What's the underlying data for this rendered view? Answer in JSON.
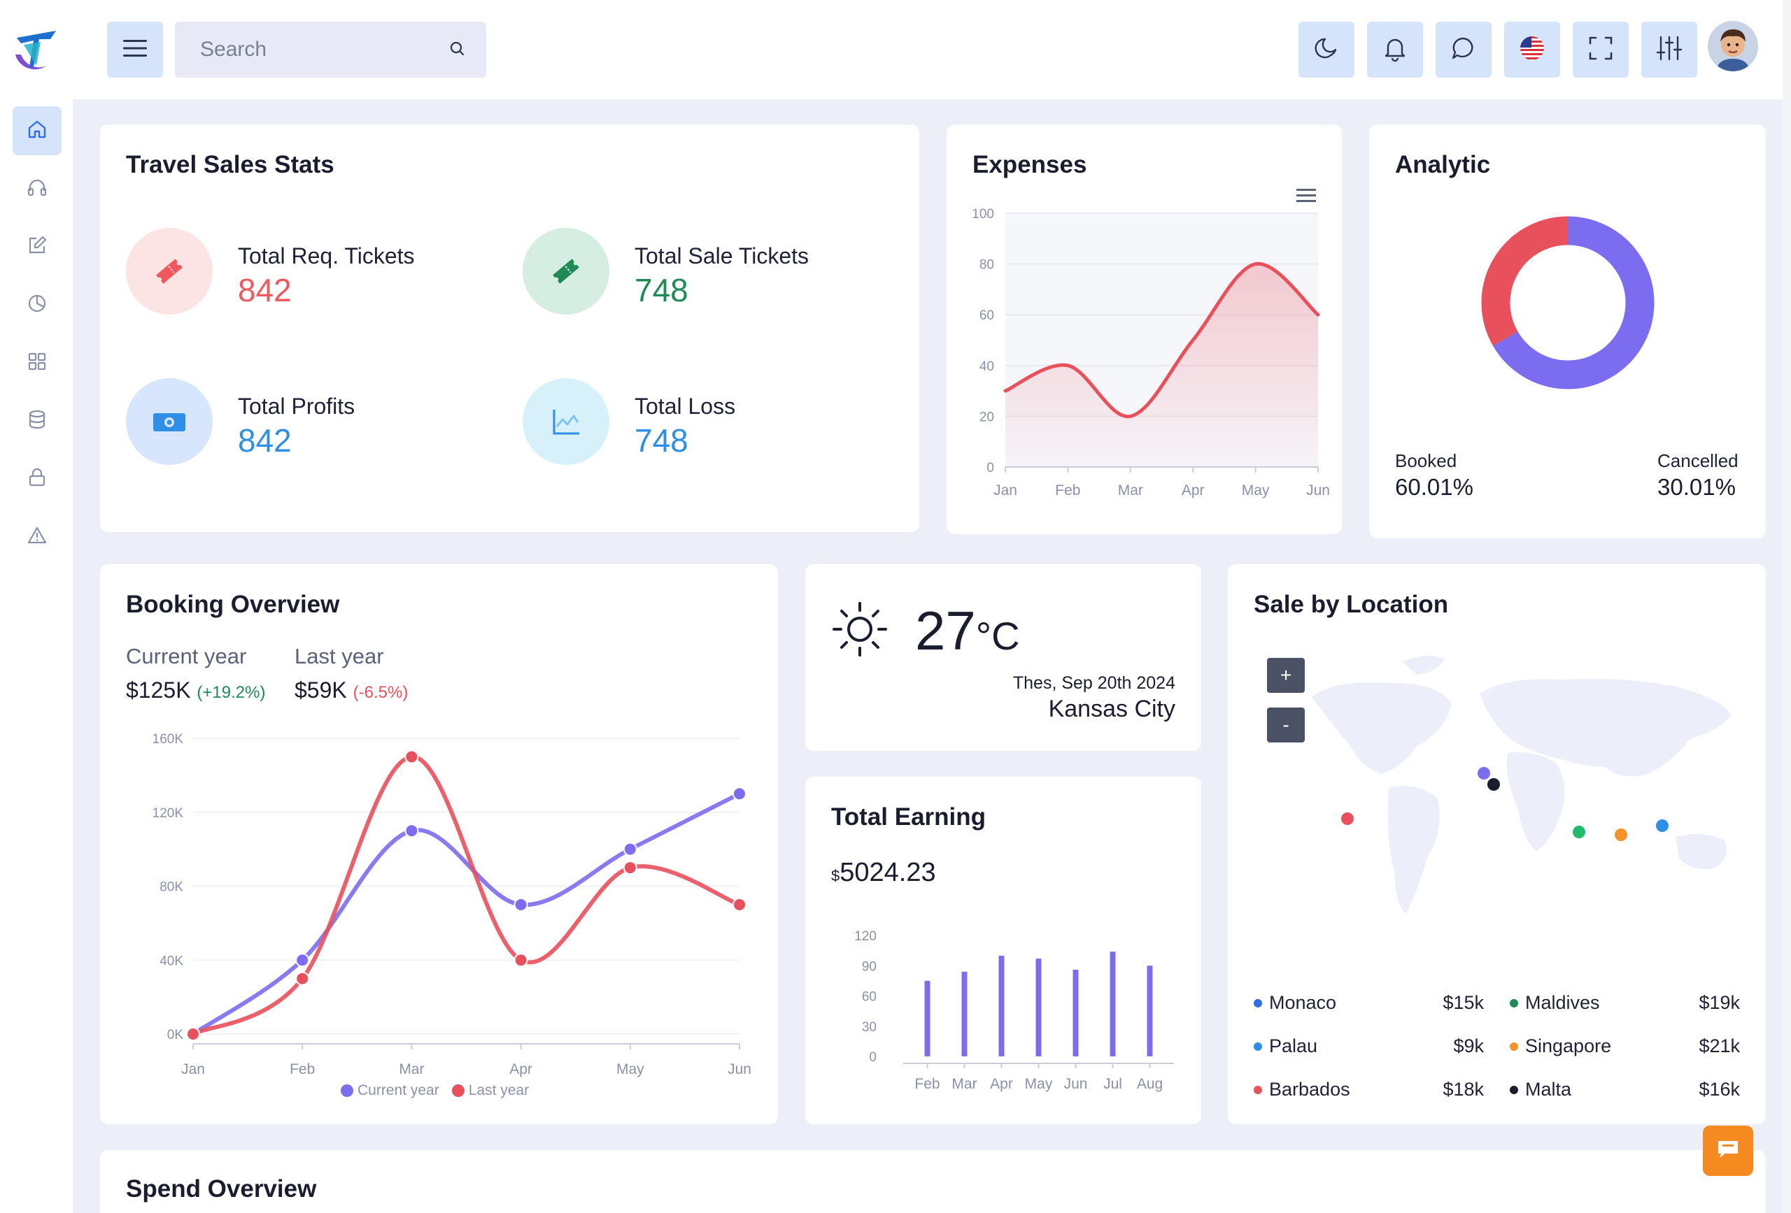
{
  "header": {
    "search_placeholder": "Search",
    "icons": [
      "menu-icon",
      "search-icon",
      "moon-icon",
      "bell-icon",
      "chat-icon",
      "us-flag-icon",
      "fullscreen-icon",
      "sliders-icon"
    ]
  },
  "sidebar": {
    "items": [
      "home-icon",
      "headset-icon",
      "edit-icon",
      "pie-chart-icon",
      "grid-icon",
      "database-icon",
      "lock-icon",
      "warning-icon"
    ]
  },
  "travel_sales": {
    "title": "Travel Sales Stats",
    "stats": [
      {
        "label": "Total Req. Tickets",
        "value": "842",
        "color": "#f0585d"
      },
      {
        "label": "Total Sale Tickets",
        "value": "748",
        "color": "#1f8a55"
      },
      {
        "label": "Total Profits",
        "value": "842",
        "color": "#2f8fe6"
      },
      {
        "label": "Total Loss",
        "value": "748",
        "color": "#2f8fe6"
      }
    ]
  },
  "expenses": {
    "title": "Expenses",
    "chart_data": {
      "type": "area",
      "x": [
        "Jan",
        "Feb",
        "Mar",
        "Apr",
        "May",
        "Jun"
      ],
      "series": [
        {
          "values": [
            30,
            40,
            20,
            50,
            80,
            60
          ]
        }
      ],
      "yticks": [
        "0",
        "20",
        "40",
        "60",
        "80",
        "100"
      ],
      "ylim": [
        0,
        100
      ],
      "color": "#e8505b"
    }
  },
  "analytic": {
    "title": "Analytic",
    "booked_label": "Booked",
    "booked_value": "60.01%",
    "cancelled_label": "Cancelled",
    "cancelled_value": "30.01%",
    "chart_data": {
      "type": "pie",
      "labels": [
        "Booked",
        "Cancelled"
      ],
      "values": [
        60.01,
        30.01
      ],
      "colors": [
        "#7b6cf0",
        "#e8505b"
      ]
    }
  },
  "booking": {
    "title": "Booking Overview",
    "current_label": "Current year",
    "current_value": "$125K",
    "current_change": "(+19.2%)",
    "last_label": "Last year",
    "last_value": "$59K",
    "last_change": "(-6.5%)",
    "legend_current": "Current year",
    "legend_last": "Last year",
    "chart_data": {
      "type": "line",
      "x": [
        "Jan",
        "Feb",
        "Mar",
        "Apr",
        "May",
        "Jun"
      ],
      "yticks": [
        "0K",
        "40K",
        "80K",
        "120K",
        "160K"
      ],
      "ylim": [
        0,
        160
      ],
      "series": [
        {
          "name": "Current year",
          "values": [
            0,
            40,
            110,
            70,
            100,
            130
          ],
          "color": "#7b6cf0"
        },
        {
          "name": "Last year",
          "values": [
            0,
            30,
            150,
            40,
            90,
            70
          ],
          "color": "#e8505b"
        }
      ]
    }
  },
  "weather": {
    "temperature": "27",
    "unit": "°C",
    "date": "Thes, Sep 20th 2024",
    "city": "Kansas City"
  },
  "earning": {
    "title": "Total Earning",
    "currency": "$",
    "amount": "5024.23",
    "chart_data": {
      "type": "bar",
      "categories": [
        "Feb",
        "Mar",
        "Apr",
        "May",
        "Jun",
        "Jul",
        "Aug"
      ],
      "values": [
        75,
        84,
        100,
        97,
        86,
        104,
        90
      ],
      "yticks": [
        "0",
        "30",
        "60",
        "90",
        "120"
      ],
      "ylim": [
        0,
        120
      ],
      "color": "#7b6cf0"
    }
  },
  "location": {
    "title": "Sale by Location",
    "zoom_in": "+",
    "zoom_out": "-",
    "rows": [
      {
        "name": "Monaco",
        "value": "$15k",
        "color": "#2f6fe6"
      },
      {
        "name": "Maldives",
        "value": "$19k",
        "color": "#1f8a55"
      },
      {
        "name": "Palau",
        "value": "$9k",
        "color": "#2f8fe6"
      },
      {
        "name": "Singapore",
        "value": "$21k",
        "color": "#f5922a"
      },
      {
        "name": "Barbados",
        "value": "$18k",
        "color": "#e8505b"
      },
      {
        "name": "Malta",
        "value": "$16k",
        "color": "#1a1d2e"
      }
    ]
  },
  "spend": {
    "title": "Spend Overview"
  }
}
